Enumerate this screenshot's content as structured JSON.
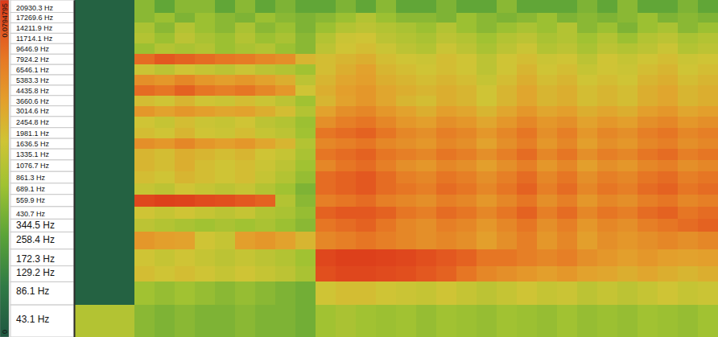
{
  "chart_data": {
    "type": "heatmap",
    "log": "y",
    "tick_labels": "y",
    "ylim": [
      25,
      24000
    ],
    "yticks": [
      {
        "value": 20930.3,
        "label": "20930.3 Hz"
      },
      {
        "value": 17269.6,
        "label": "17269.6 Hz"
      },
      {
        "value": 14211.9,
        "label": "14211.9 Hz"
      },
      {
        "value": 11714.1,
        "label": "11714.1 Hz"
      },
      {
        "value": 9646.9,
        "label": "9646.9 Hz"
      },
      {
        "value": 7924.2,
        "label": "7924.2 Hz"
      },
      {
        "value": 6546.1,
        "label": "6546.1 Hz"
      },
      {
        "value": 5383.3,
        "label": "5383.3 Hz"
      },
      {
        "value": 4435.8,
        "label": "4435.8 Hz"
      },
      {
        "value": 3660.6,
        "label": "3660.6 Hz"
      },
      {
        "value": 3014.6,
        "label": "3014.6 Hz"
      },
      {
        "value": 2454.8,
        "label": "2454.8 Hz"
      },
      {
        "value": 1981.1,
        "label": "1981.1 Hz"
      },
      {
        "value": 1636.5,
        "label": "1636.5 Hz"
      },
      {
        "value": 1335.1,
        "label": "1335.1 Hz"
      },
      {
        "value": 1076.7,
        "label": "1076.7 Hz"
      },
      {
        "value": 861.3,
        "label": "861.3 Hz"
      },
      {
        "value": 689.1,
        "label": "689.1 Hz"
      },
      {
        "value": 559.9,
        "label": "559.9 Hz"
      },
      {
        "value": 430.7,
        "label": "430.7 Hz"
      },
      {
        "value": 344.5,
        "label": "344.5 Hz"
      },
      {
        "value": 258.4,
        "label": "258.4 Hz"
      },
      {
        "value": 172.3,
        "label": "172.3 Hz"
      },
      {
        "value": 129.2,
        "label": "129.2 Hz"
      },
      {
        "value": 86.1,
        "label": "86.1 Hz"
      },
      {
        "value": 43.1,
        "label": "43.1 Hz"
      }
    ],
    "y": [
      20930.3,
      17269.6,
      14211.9,
      11714.1,
      9646.9,
      7924.2,
      6546.1,
      5383.3,
      4435.8,
      3660.6,
      3014.6,
      2454.8,
      1981.1,
      1636.5,
      1335.1,
      1076.7,
      861.3,
      689.1,
      559.9,
      430.7,
      344.5,
      258.4,
      172.3,
      129.2,
      86.1,
      43.1
    ],
    "colorbar": {
      "range": [
        0,
        0.0794795
      ],
      "ticks": [
        0,
        0.0794795
      ]
    },
    "cells": [
      [
        0.004,
        0.004,
        0.004,
        0.032,
        0.025,
        0.032,
        0.032,
        0.025,
        0.032,
        0.025,
        0.03,
        0.025,
        0.025,
        0.03,
        0.025,
        0.032,
        0.025,
        0.025,
        0.03,
        0.025,
        0.025,
        0.032,
        0.025,
        0.025,
        0.025,
        0.03,
        0.025,
        0.032,
        0.025,
        0.025,
        0.03,
        0.025
      ],
      [
        0.004,
        0.004,
        0.004,
        0.032,
        0.035,
        0.03,
        0.035,
        0.032,
        0.03,
        0.035,
        0.032,
        0.03,
        0.032,
        0.035,
        0.04,
        0.035,
        0.032,
        0.032,
        0.03,
        0.035,
        0.032,
        0.03,
        0.032,
        0.035,
        0.03,
        0.032,
        0.03,
        0.032,
        0.035,
        0.03,
        0.032,
        0.03
      ],
      [
        0.004,
        0.004,
        0.004,
        0.038,
        0.032,
        0.04,
        0.035,
        0.032,
        0.038,
        0.032,
        0.035,
        0.03,
        0.035,
        0.04,
        0.042,
        0.04,
        0.038,
        0.035,
        0.04,
        0.035,
        0.032,
        0.035,
        0.038,
        0.035,
        0.04,
        0.032,
        0.035,
        0.03,
        0.035,
        0.038,
        0.032,
        0.035
      ],
      [
        0.004,
        0.004,
        0.004,
        0.04,
        0.035,
        0.042,
        0.038,
        0.035,
        0.04,
        0.035,
        0.038,
        0.032,
        0.04,
        0.045,
        0.046,
        0.042,
        0.04,
        0.038,
        0.042,
        0.04,
        0.036,
        0.04,
        0.042,
        0.038,
        0.04,
        0.036,
        0.04,
        0.035,
        0.04,
        0.042,
        0.038,
        0.04
      ],
      [
        0.004,
        0.004,
        0.004,
        0.035,
        0.04,
        0.038,
        0.04,
        0.035,
        0.038,
        0.04,
        0.035,
        0.032,
        0.042,
        0.046,
        0.048,
        0.045,
        0.042,
        0.04,
        0.045,
        0.042,
        0.038,
        0.042,
        0.045,
        0.04,
        0.042,
        0.038,
        0.042,
        0.04,
        0.042,
        0.045,
        0.04,
        0.042
      ],
      [
        0.004,
        0.004,
        0.004,
        0.068,
        0.072,
        0.07,
        0.068,
        0.066,
        0.065,
        0.062,
        0.06,
        0.05,
        0.048,
        0.05,
        0.052,
        0.048,
        0.046,
        0.045,
        0.048,
        0.046,
        0.042,
        0.046,
        0.048,
        0.045,
        0.046,
        0.042,
        0.046,
        0.044,
        0.046,
        0.048,
        0.045,
        0.046
      ],
      [
        0.004,
        0.004,
        0.004,
        0.045,
        0.042,
        0.046,
        0.044,
        0.042,
        0.045,
        0.042,
        0.04,
        0.036,
        0.048,
        0.052,
        0.055,
        0.05,
        0.048,
        0.046,
        0.048,
        0.046,
        0.042,
        0.046,
        0.05,
        0.046,
        0.048,
        0.044,
        0.046,
        0.045,
        0.048,
        0.05,
        0.046,
        0.048
      ],
      [
        0.004,
        0.004,
        0.004,
        0.06,
        0.058,
        0.062,
        0.058,
        0.056,
        0.058,
        0.055,
        0.052,
        0.042,
        0.05,
        0.054,
        0.056,
        0.052,
        0.05,
        0.048,
        0.05,
        0.048,
        0.044,
        0.048,
        0.052,
        0.048,
        0.05,
        0.046,
        0.048,
        0.046,
        0.05,
        0.052,
        0.048,
        0.05
      ],
      [
        0.004,
        0.004,
        0.004,
        0.068,
        0.066,
        0.07,
        0.066,
        0.064,
        0.066,
        0.062,
        0.058,
        0.046,
        0.052,
        0.056,
        0.058,
        0.054,
        0.052,
        0.05,
        0.052,
        0.05,
        0.046,
        0.05,
        0.054,
        0.05,
        0.052,
        0.048,
        0.05,
        0.048,
        0.052,
        0.054,
        0.05,
        0.052
      ],
      [
        0.004,
        0.004,
        0.004,
        0.048,
        0.046,
        0.05,
        0.046,
        0.045,
        0.048,
        0.045,
        0.042,
        0.036,
        0.05,
        0.055,
        0.058,
        0.054,
        0.05,
        0.048,
        0.052,
        0.05,
        0.046,
        0.05,
        0.054,
        0.05,
        0.052,
        0.048,
        0.05,
        0.048,
        0.052,
        0.054,
        0.05,
        0.052
      ],
      [
        0.004,
        0.004,
        0.004,
        0.058,
        0.055,
        0.058,
        0.056,
        0.054,
        0.055,
        0.052,
        0.048,
        0.04,
        0.055,
        0.06,
        0.062,
        0.058,
        0.055,
        0.052,
        0.056,
        0.054,
        0.05,
        0.054,
        0.058,
        0.054,
        0.056,
        0.052,
        0.054,
        0.052,
        0.056,
        0.058,
        0.054,
        0.056
      ],
      [
        0.004,
        0.004,
        0.004,
        0.046,
        0.044,
        0.048,
        0.045,
        0.044,
        0.046,
        0.042,
        0.04,
        0.035,
        0.06,
        0.064,
        0.066,
        0.062,
        0.058,
        0.056,
        0.06,
        0.058,
        0.054,
        0.058,
        0.062,
        0.058,
        0.06,
        0.055,
        0.058,
        0.056,
        0.06,
        0.062,
        0.058,
        0.06
      ],
      [
        0.004,
        0.004,
        0.004,
        0.048,
        0.046,
        0.05,
        0.046,
        0.045,
        0.048,
        0.044,
        0.042,
        0.036,
        0.066,
        0.068,
        0.07,
        0.066,
        0.062,
        0.06,
        0.064,
        0.062,
        0.058,
        0.062,
        0.066,
        0.06,
        0.064,
        0.058,
        0.062,
        0.06,
        0.064,
        0.066,
        0.062,
        0.064
      ],
      [
        0.004,
        0.004,
        0.004,
        0.06,
        0.058,
        0.062,
        0.058,
        0.056,
        0.058,
        0.054,
        0.05,
        0.04,
        0.062,
        0.064,
        0.066,
        0.062,
        0.06,
        0.058,
        0.062,
        0.06,
        0.055,
        0.06,
        0.064,
        0.058,
        0.062,
        0.056,
        0.06,
        0.058,
        0.062,
        0.064,
        0.06,
        0.062
      ],
      [
        0.004,
        0.004,
        0.004,
        0.05,
        0.048,
        0.052,
        0.05,
        0.048,
        0.05,
        0.046,
        0.044,
        0.038,
        0.066,
        0.068,
        0.07,
        0.066,
        0.064,
        0.062,
        0.066,
        0.064,
        0.06,
        0.064,
        0.068,
        0.062,
        0.066,
        0.06,
        0.064,
        0.062,
        0.066,
        0.068,
        0.064,
        0.066
      ],
      [
        0.004,
        0.004,
        0.004,
        0.05,
        0.048,
        0.052,
        0.048,
        0.046,
        0.048,
        0.045,
        0.042,
        0.036,
        0.062,
        0.066,
        0.068,
        0.064,
        0.06,
        0.058,
        0.062,
        0.06,
        0.056,
        0.06,
        0.064,
        0.058,
        0.062,
        0.056,
        0.06,
        0.058,
        0.062,
        0.064,
        0.06,
        0.062
      ],
      [
        0.004,
        0.004,
        0.004,
        0.048,
        0.046,
        0.05,
        0.048,
        0.046,
        0.048,
        0.044,
        0.04,
        0.034,
        0.068,
        0.07,
        0.072,
        0.068,
        0.064,
        0.062,
        0.066,
        0.064,
        0.06,
        0.064,
        0.068,
        0.062,
        0.066,
        0.06,
        0.064,
        0.062,
        0.066,
        0.068,
        0.064,
        0.066
      ],
      [
        0.004,
        0.004,
        0.004,
        0.044,
        0.042,
        0.046,
        0.044,
        0.042,
        0.044,
        0.04,
        0.036,
        0.03,
        0.068,
        0.07,
        0.072,
        0.068,
        0.066,
        0.064,
        0.068,
        0.066,
        0.062,
        0.066,
        0.07,
        0.064,
        0.068,
        0.062,
        0.066,
        0.064,
        0.068,
        0.07,
        0.066,
        0.068
      ],
      [
        0.004,
        0.004,
        0.004,
        0.076,
        0.078,
        0.077,
        0.075,
        0.074,
        0.072,
        0.07,
        0.04,
        0.032,
        0.064,
        0.066,
        0.068,
        0.064,
        0.062,
        0.06,
        0.064,
        0.062,
        0.058,
        0.062,
        0.066,
        0.06,
        0.064,
        0.058,
        0.062,
        0.06,
        0.064,
        0.066,
        0.062,
        0.064
      ],
      [
        0.004,
        0.004,
        0.004,
        0.046,
        0.044,
        0.046,
        0.044,
        0.042,
        0.044,
        0.04,
        0.038,
        0.034,
        0.07,
        0.072,
        0.072,
        0.07,
        0.066,
        0.064,
        0.068,
        0.066,
        0.062,
        0.066,
        0.07,
        0.064,
        0.068,
        0.062,
        0.066,
        0.064,
        0.068,
        0.07,
        0.066,
        0.068
      ],
      [
        0.004,
        0.004,
        0.004,
        0.042,
        0.04,
        0.038,
        0.036,
        0.038,
        0.036,
        0.038,
        0.035,
        0.032,
        0.066,
        0.068,
        0.07,
        0.066,
        0.062,
        0.06,
        0.064,
        0.062,
        0.058,
        0.062,
        0.066,
        0.06,
        0.064,
        0.058,
        0.062,
        0.06,
        0.064,
        0.066,
        0.068,
        0.07
      ],
      [
        0.004,
        0.004,
        0.004,
        0.058,
        0.056,
        0.055,
        0.046,
        0.044,
        0.056,
        0.058,
        0.055,
        0.05,
        0.062,
        0.064,
        0.066,
        0.064,
        0.062,
        0.06,
        0.062,
        0.06,
        0.056,
        0.06,
        0.064,
        0.058,
        0.062,
        0.056,
        0.06,
        0.058,
        0.06,
        0.062,
        0.06,
        0.062
      ],
      [
        0.004,
        0.004,
        0.004,
        0.046,
        0.044,
        0.046,
        0.044,
        0.042,
        0.044,
        0.042,
        0.04,
        0.036,
        0.076,
        0.078,
        0.078,
        0.077,
        0.076,
        0.074,
        0.072,
        0.07,
        0.066,
        0.066,
        0.064,
        0.062,
        0.064,
        0.06,
        0.058,
        0.056,
        0.058,
        0.056,
        0.055,
        0.056
      ],
      [
        0.004,
        0.004,
        0.004,
        0.048,
        0.046,
        0.048,
        0.046,
        0.044,
        0.046,
        0.044,
        0.042,
        0.038,
        0.074,
        0.076,
        0.076,
        0.075,
        0.074,
        0.072,
        0.07,
        0.066,
        0.062,
        0.06,
        0.058,
        0.056,
        0.058,
        0.055,
        0.054,
        0.052,
        0.054,
        0.052,
        0.05,
        0.052
      ],
      [
        0.004,
        0.004,
        0.004,
        0.036,
        0.034,
        0.036,
        0.034,
        0.032,
        0.034,
        0.032,
        0.03,
        0.028,
        0.046,
        0.048,
        0.048,
        0.046,
        0.045,
        0.044,
        0.046,
        0.044,
        0.042,
        0.044,
        0.046,
        0.044,
        0.045,
        0.042,
        0.044,
        0.042,
        0.044,
        0.046,
        0.044,
        0.045
      ],
      [
        0.04,
        0.04,
        0.04,
        0.032,
        0.03,
        0.032,
        0.03,
        0.03,
        0.032,
        0.03,
        0.03,
        0.028,
        0.036,
        0.038,
        0.036,
        0.035,
        0.036,
        0.034,
        0.036,
        0.035,
        0.034,
        0.036,
        0.035,
        0.034,
        0.036,
        0.034,
        0.035,
        0.034,
        0.036,
        0.035,
        0.034,
        0.036
      ]
    ]
  }
}
